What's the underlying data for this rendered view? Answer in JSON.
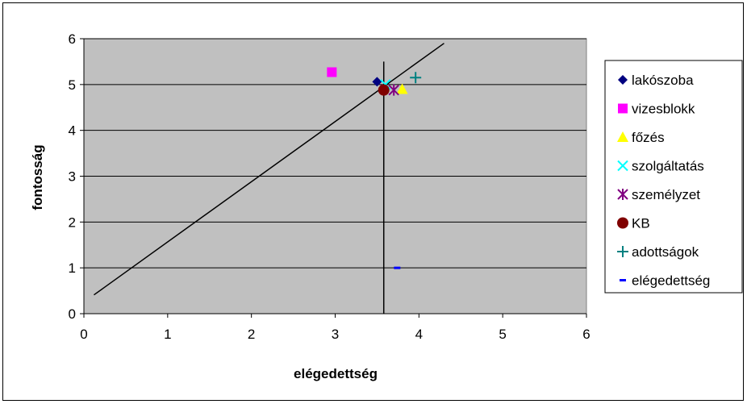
{
  "chart_data": {
    "type": "scatter",
    "xlabel": "elégedettség",
    "ylabel": "fontosság",
    "xlim": [
      0,
      6
    ],
    "ylim": [
      0,
      6
    ],
    "x_ticks": [
      0,
      1,
      2,
      3,
      4,
      5,
      6
    ],
    "y_ticks": [
      0,
      1,
      2,
      3,
      4,
      5,
      6
    ],
    "grid": "horizontal",
    "plot_background": "#c0c0c0",
    "legend_position": "right",
    "series": [
      {
        "name": "lakószoba",
        "marker": "diamond",
        "color": "#000080",
        "points": [
          [
            3.5,
            5.06
          ]
        ]
      },
      {
        "name": "vizesblokk",
        "marker": "square",
        "color": "#ff00ff",
        "points": [
          [
            2.96,
            5.27
          ]
        ]
      },
      {
        "name": "főzés",
        "marker": "triangle",
        "color": "#ffff00",
        "points": [
          [
            3.8,
            4.9
          ]
        ]
      },
      {
        "name": "szolgáltatás",
        "marker": "x",
        "color": "#00ffff",
        "points": [
          [
            3.6,
            5.0
          ]
        ]
      },
      {
        "name": "személyzet",
        "marker": "asterisk",
        "color": "#800080",
        "points": [
          [
            3.7,
            4.88
          ]
        ]
      },
      {
        "name": "KB",
        "marker": "circle",
        "color": "#800000",
        "points": [
          [
            3.58,
            4.88
          ]
        ]
      },
      {
        "name": "adottságok",
        "marker": "plus",
        "color": "#008080",
        "points": [
          [
            3.96,
            5.15
          ]
        ]
      },
      {
        "name": "elégedettség",
        "marker": "dash",
        "color": "#0000ff",
        "points": [
          [
            3.74,
            1.0
          ]
        ]
      }
    ],
    "lines": [
      {
        "from": [
          0.12,
          0.41
        ],
        "to": [
          4.3,
          5.9
        ],
        "color": "#000000"
      },
      {
        "from": [
          3.58,
          0
        ],
        "to": [
          3.58,
          5.5
        ],
        "color": "#000000"
      }
    ]
  }
}
